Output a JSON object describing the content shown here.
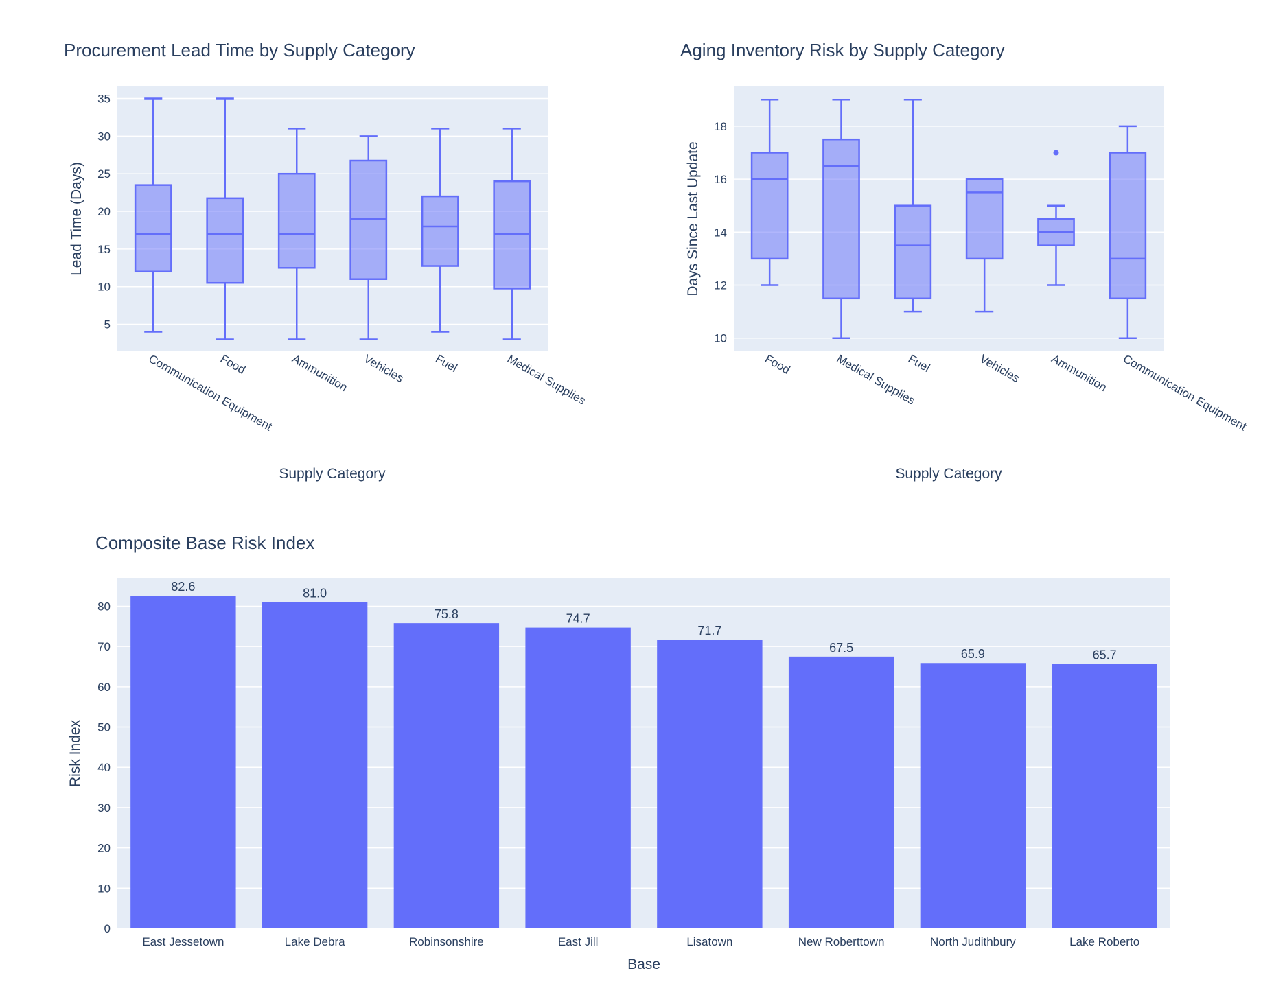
{
  "colors": {
    "primary": "#636efa",
    "plot_bg": "#e5ecf6",
    "text": "#2a3f5f"
  },
  "chart_data": [
    {
      "type": "box",
      "title": "Procurement Lead Time by Supply Category",
      "xlabel": "Supply Category",
      "ylabel": "Lead Time (Days)",
      "ylim": [
        1.4,
        36.6
      ],
      "yticks": [
        5,
        10,
        15,
        20,
        25,
        30,
        35
      ],
      "grid": true,
      "categories": [
        "Communication Equipment",
        "Food",
        "Ammunition",
        "Vehicles",
        "Fuel",
        "Medical Supplies"
      ],
      "boxes": [
        {
          "min": 4,
          "q1": 12,
          "median": 17,
          "q3": 23.5,
          "max": 35,
          "outliers": []
        },
        {
          "min": 3,
          "q1": 10.5,
          "median": 17,
          "q3": 21.75,
          "max": 35,
          "outliers": []
        },
        {
          "min": 3,
          "q1": 12.5,
          "median": 17,
          "q3": 25,
          "max": 31,
          "outliers": []
        },
        {
          "min": 3,
          "q1": 11,
          "median": 19,
          "q3": 26.75,
          "max": 30,
          "outliers": []
        },
        {
          "min": 4,
          "q1": 12.75,
          "median": 18,
          "q3": 22,
          "max": 31,
          "outliers": []
        },
        {
          "min": 3,
          "q1": 9.75,
          "median": 17,
          "q3": 24,
          "max": 31,
          "outliers": []
        }
      ]
    },
    {
      "type": "box",
      "title": "Aging Inventory Risk by Supply Category",
      "xlabel": "Supply Category",
      "ylabel": "Days Since Last Update",
      "ylim": [
        9.5,
        19.5
      ],
      "yticks": [
        10,
        12,
        14,
        16,
        18
      ],
      "grid": true,
      "categories": [
        "Food",
        "Medical Supplies",
        "Fuel",
        "Vehicles",
        "Ammunition",
        "Communication Equipment"
      ],
      "boxes": [
        {
          "min": 12,
          "q1": 13,
          "median": 16,
          "q3": 17,
          "max": 19,
          "outliers": []
        },
        {
          "min": 10,
          "q1": 11.5,
          "median": 16.5,
          "q3": 17.5,
          "max": 19,
          "outliers": []
        },
        {
          "min": 11,
          "q1": 11.5,
          "median": 13.5,
          "q3": 15,
          "max": 19,
          "outliers": []
        },
        {
          "min": 11,
          "q1": 13,
          "median": 15.5,
          "q3": 16,
          "max": 16,
          "outliers": []
        },
        {
          "min": 12,
          "q1": 13.5,
          "median": 14,
          "q3": 14.5,
          "max": 15,
          "outliers": [
            17
          ]
        },
        {
          "min": 10,
          "q1": 11.5,
          "median": 13,
          "q3": 17,
          "max": 18,
          "outliers": []
        }
      ]
    },
    {
      "type": "bar",
      "title": "Composite Base Risk Index",
      "xlabel": "Base",
      "ylabel": "Risk Index",
      "ylim": [
        0,
        86.9
      ],
      "yticks": [
        0,
        10,
        20,
        30,
        40,
        50,
        60,
        70,
        80
      ],
      "grid": true,
      "categories": [
        "East Jessetown",
        "Lake Debra",
        "Robinsonshire",
        "East Jill",
        "Lisatown",
        "New Roberttown",
        "North Judithbury",
        "Lake Roberto"
      ],
      "values": [
        82.6,
        81.0,
        75.8,
        74.7,
        71.7,
        67.5,
        65.9,
        65.7
      ],
      "value_labels": [
        "82.6",
        "81.0",
        "75.8",
        "74.7",
        "71.7",
        "67.5",
        "65.9",
        "65.7"
      ]
    }
  ]
}
